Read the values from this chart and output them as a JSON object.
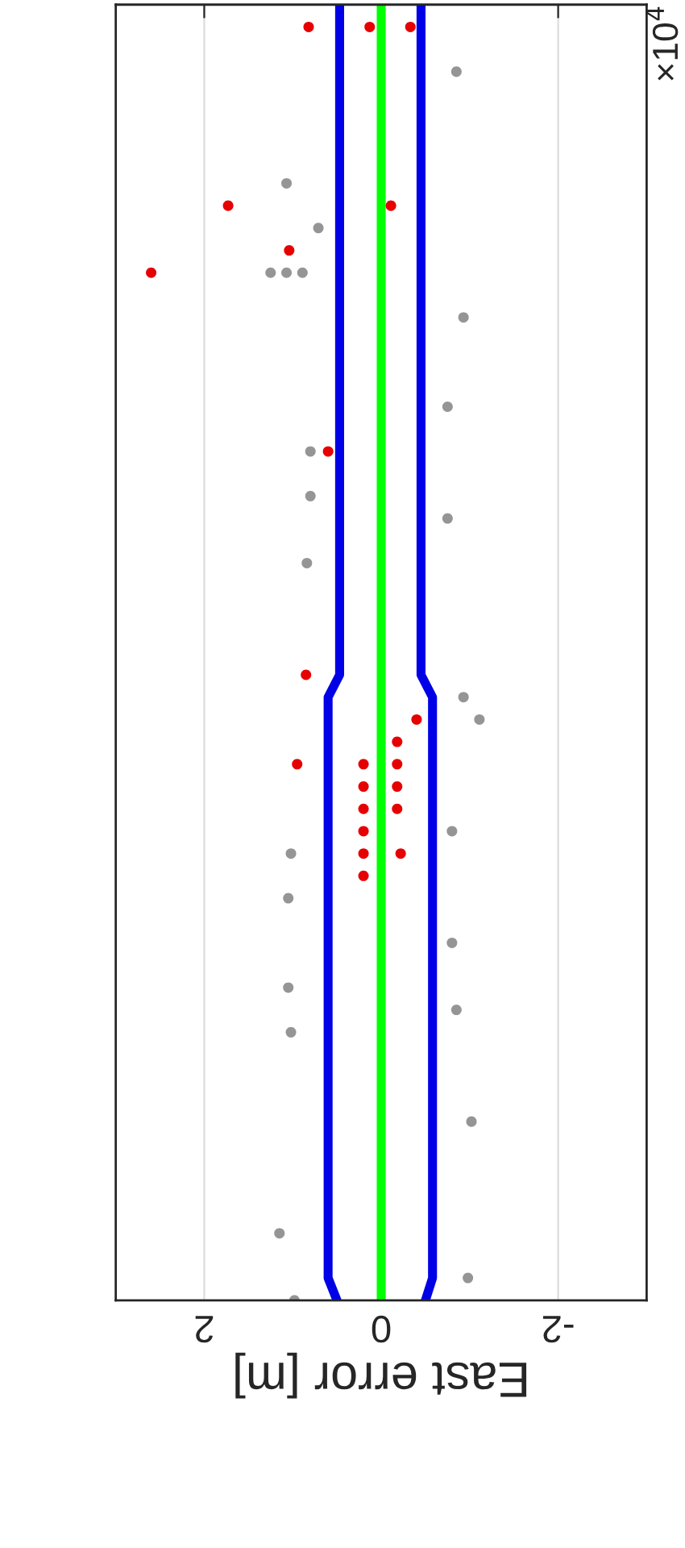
{
  "chart_data": {
    "type": "scatter",
    "orientation": "horizontal",
    "xlabel": "East error [m]",
    "xlim": [
      3,
      -3
    ],
    "xticks": [
      2,
      0,
      -2
    ],
    "tick_labels": "x",
    "grid": "x",
    "annotations": [
      "×10$^{4}$"
    ],
    "categories": [
      null,
      null,
      null,
      null,
      null,
      null,
      null,
      null,
      null,
      null,
      null,
      null,
      null,
      null,
      null,
      null,
      null,
      null,
      null,
      null,
      null,
      null,
      null,
      null,
      null,
      null,
      null,
      null,
      null,
      null,
      null,
      null,
      null,
      null,
      null,
      null,
      null,
      null,
      null,
      null,
      null,
      null,
      null,
      null,
      null,
      null,
      null,
      null,
      null,
      null,
      null,
      null,
      null,
      null,
      null,
      null,
      null,
      null,
      null
    ],
    "series": [
      {
        "color": "#959595",
        "marker": "circle",
        "values": [
          null,
          null,
          null,
          -0.85,
          null,
          null,
          null,
          null,
          1.07,
          null,
          0.71,
          null,
          1.25,
          null,
          -0.93,
          null,
          null,
          null,
          -0.75,
          null,
          0.8,
          null,
          0.8,
          -0.75,
          null,
          0.84,
          null,
          null,
          null,
          null,
          null,
          -0.93,
          -1.11,
          null,
          null,
          null,
          null,
          -0.8,
          1.02,
          null,
          1.05,
          null,
          -0.8,
          null,
          1.05,
          -0.85,
          1.02,
          null,
          null,
          null,
          -1.02,
          null,
          null,
          null,
          null,
          1.15,
          null,
          -0.98,
          0.98
        ]
      },
      {
        "color": "#959595",
        "marker": "circle",
        "values": [
          null,
          null,
          null,
          null,
          null,
          null,
          null,
          null,
          null,
          null,
          null,
          null,
          1.07,
          null,
          null,
          null,
          null,
          null,
          null,
          null,
          null,
          null,
          null,
          null,
          null,
          null,
          null,
          null,
          null,
          null,
          null,
          null,
          null,
          null,
          null,
          null,
          null,
          null,
          null,
          null,
          null,
          null,
          null,
          null,
          null,
          null,
          null,
          null,
          null,
          null,
          null,
          null,
          null,
          null,
          null,
          null,
          null,
          null,
          null
        ]
      },
      {
        "color": "#959595",
        "marker": "circle",
        "values": [
          null,
          null,
          null,
          null,
          null,
          null,
          null,
          null,
          null,
          null,
          null,
          null,
          0.89,
          null,
          null,
          null,
          null,
          null,
          null,
          null,
          null,
          null,
          null,
          null,
          null,
          null,
          null,
          null,
          null,
          null,
          null,
          null,
          null,
          null,
          null,
          null,
          null,
          null,
          null,
          null,
          null,
          null,
          null,
          null,
          null,
          null,
          null,
          null,
          null,
          null,
          null,
          null,
          null,
          null,
          null,
          null,
          null,
          null,
          null
        ]
      },
      {
        "type": "line",
        "color": "#0000e6",
        "values": [
          0.47,
          0.47,
          0.47,
          0.47,
          0.47,
          0.47,
          0.47,
          0.47,
          0.47,
          0.47,
          0.47,
          0.47,
          0.47,
          0.47,
          0.47,
          0.47,
          0.47,
          0.47,
          0.47,
          0.47,
          0.47,
          0.47,
          0.47,
          0.47,
          0.47,
          0.47,
          0.47,
          0.47,
          0.47,
          0.47,
          0.47,
          0.6,
          0.6,
          0.6,
          0.6,
          0.6,
          0.6,
          0.6,
          0.6,
          0.6,
          0.6,
          0.6,
          0.6,
          0.6,
          0.6,
          0.6,
          0.6,
          0.6,
          0.6,
          0.6,
          0.6,
          0.6,
          0.6,
          0.6,
          0.6,
          0.6,
          0.6,
          0.6,
          0.5
        ]
      },
      {
        "type": "line",
        "color": "#0000e6",
        "values": [
          -0.45,
          -0.45,
          -0.45,
          -0.45,
          -0.45,
          -0.45,
          -0.45,
          -0.45,
          -0.45,
          -0.45,
          -0.45,
          -0.45,
          -0.45,
          -0.45,
          -0.45,
          -0.45,
          -0.45,
          -0.45,
          -0.45,
          -0.45,
          -0.45,
          -0.45,
          -0.45,
          -0.45,
          -0.45,
          -0.45,
          -0.45,
          -0.45,
          -0.45,
          -0.45,
          -0.45,
          -0.58,
          -0.58,
          -0.58,
          -0.58,
          -0.58,
          -0.58,
          -0.58,
          -0.58,
          -0.58,
          -0.58,
          -0.58,
          -0.58,
          -0.58,
          -0.58,
          -0.58,
          -0.58,
          -0.58,
          -0.58,
          -0.58,
          -0.58,
          -0.58,
          -0.58,
          -0.58,
          -0.58,
          -0.58,
          -0.58,
          -0.58,
          -0.5
        ]
      },
      {
        "type": "line",
        "color": "#00ff00",
        "values": [
          0,
          0,
          0,
          0,
          0,
          0,
          0,
          0,
          0,
          0,
          0,
          0,
          0,
          0,
          0,
          0,
          0,
          0,
          0,
          0,
          0,
          0,
          0,
          0,
          0,
          0,
          0,
          0,
          0,
          0,
          0,
          0,
          0,
          0,
          0,
          0,
          0,
          0,
          0,
          0,
          0,
          0,
          0,
          0,
          0,
          0,
          0,
          0,
          0,
          0,
          0,
          0,
          0,
          0,
          0,
          0,
          0,
          0,
          0
        ]
      },
      {
        "color": "#e60000",
        "marker": "circle",
        "values": [
          null,
          0.82,
          null,
          null,
          null,
          null,
          null,
          null,
          null,
          1.73,
          null,
          1.04,
          2.6,
          null,
          null,
          null,
          null,
          null,
          null,
          null,
          0.6,
          null,
          null,
          null,
          null,
          null,
          null,
          null,
          null,
          null,
          0.85,
          null,
          -0.4,
          -0.18,
          0.95,
          null,
          null,
          null,
          -0.22,
          null,
          null,
          null,
          null,
          null,
          null,
          null,
          null,
          null,
          null,
          null,
          null,
          null,
          null,
          null,
          null,
          null,
          null,
          null,
          null
        ]
      },
      {
        "color": "#e60000",
        "marker": "circle",
        "values": [
          null,
          0.13,
          null,
          null,
          null,
          null,
          null,
          null,
          null,
          -0.11,
          null,
          null,
          null,
          null,
          null,
          null,
          null,
          null,
          null,
          null,
          null,
          null,
          null,
          null,
          null,
          null,
          null,
          null,
          null,
          null,
          null,
          null,
          null,
          null,
          -0.18,
          -0.18,
          -0.18,
          0.2,
          null,
          0.2,
          null,
          null,
          null,
          null,
          null,
          null,
          null,
          null,
          null,
          null,
          null,
          null,
          null,
          null,
          null,
          null,
          null,
          null,
          null
        ]
      },
      {
        "color": "#e60000",
        "marker": "circle",
        "values": [
          null,
          -0.33,
          null,
          null,
          null,
          null,
          null,
          null,
          null,
          null,
          null,
          null,
          null,
          null,
          null,
          null,
          null,
          null,
          null,
          null,
          null,
          null,
          null,
          null,
          null,
          null,
          null,
          null,
          null,
          null,
          null,
          null,
          null,
          null,
          0.2,
          0.2,
          0.2,
          null,
          0.2,
          null,
          null,
          null,
          null,
          null,
          null,
          null,
          null,
          null,
          null,
          null,
          null,
          null,
          null,
          null,
          null,
          null,
          null,
          null,
          null
        ]
      }
    ]
  }
}
